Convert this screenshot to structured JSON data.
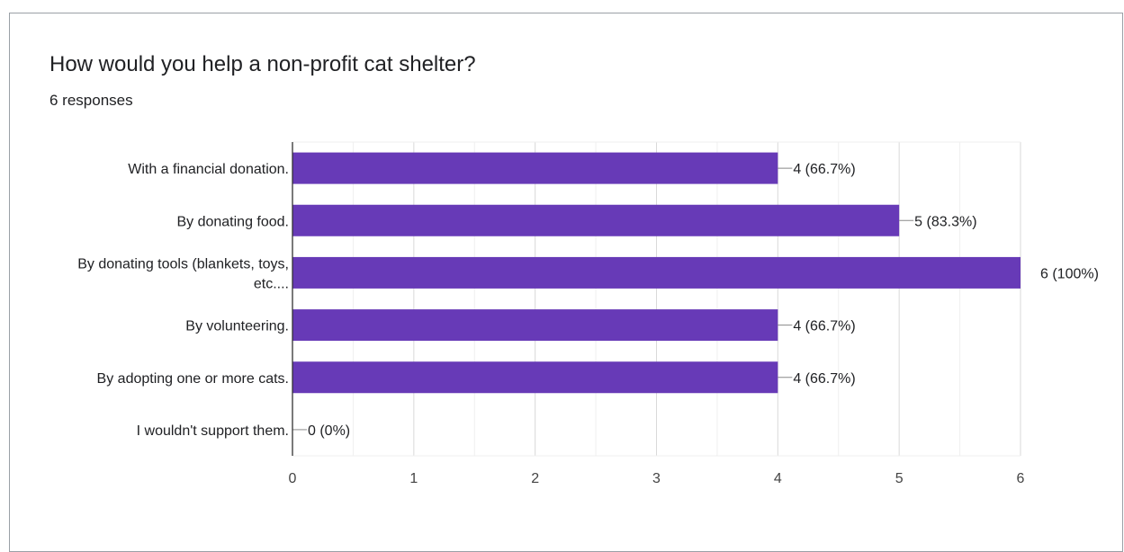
{
  "header": {
    "question": "How would you help a non-profit cat shelter?",
    "responses": "6 responses"
  },
  "chart_data": {
    "type": "bar",
    "orientation": "horizontal",
    "categories": [
      [
        "With a financial donation."
      ],
      [
        "By donating food."
      ],
      [
        "By donating tools (blankets, toys,",
        "etc...."
      ],
      [
        "By volunteering."
      ],
      [
        "By adopting one or more cats."
      ],
      [
        "I wouldn't support them."
      ]
    ],
    "values": [
      4,
      5,
      6,
      4,
      4,
      0
    ],
    "data_labels": [
      "4 (66.7%)",
      "5 (83.3%)",
      "6 (100%)",
      "4 (66.7%)",
      "4 (66.7%)",
      "0 (0%)"
    ],
    "xlim": [
      0,
      6
    ],
    "x_ticks": [
      "0",
      "1",
      "2",
      "3",
      "4",
      "5",
      "6"
    ],
    "grid": true,
    "bar_color": "#673ab7",
    "title": "How would you help a non-profit cat shelter?",
    "subtitle": "6 responses"
  }
}
